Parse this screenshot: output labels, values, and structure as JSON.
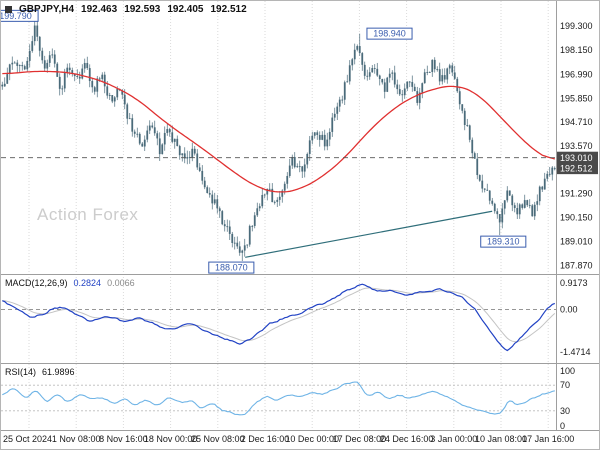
{
  "header": {
    "icon": "chart-symbol-icon",
    "symbol": "GBPJPY,H4",
    "open": "192.463",
    "high": "192.593",
    "low": "192.405",
    "close": "192.512"
  },
  "watermark": "Action Forex",
  "colors": {
    "candle": "#4a6b7a",
    "ma_line": "#e03030",
    "macd_line": "#2142c4",
    "signal_line": "#c4c4c4",
    "rsi_line": "#6fb4e6",
    "annotation": "#3a5dae",
    "price_box_bg": "#4a4a4a",
    "grid": "#dadada",
    "axis_text": "#1a1a1a",
    "trendline": "#2f6e7a",
    "watermark": "#cccccc",
    "separator": "#9e9e9e",
    "level_line": "#555555",
    "zero_line": "#888888",
    "rsi_level": "#bbbbbb"
  },
  "chart_data": [
    {
      "type": "candlestick",
      "title": "GBPJPY H4 price chart",
      "legend_position": "top-left",
      "grid": "vertical-dotted",
      "y_ticks": [
        "199.300",
        "198.150",
        "196.990",
        "195.850",
        "194.710",
        "193.570",
        "191.290",
        "190.150",
        "189.010",
        "187.870"
      ],
      "y_range": [
        187.5,
        200.5
      ],
      "x_labels": [
        "25 Oct 2024",
        "1 Nov 08:00",
        "8 Nov 16:00",
        "18 Nov 00:00",
        "25 Nov 08:00",
        "2 Dec 16:00",
        "10 Dec 00:00",
        "17 Dec 08:00",
        "24 Dec 16:00",
        "3 Jan 00:00",
        "10 Jan 08:00",
        "17 Jan 16:00"
      ],
      "price_anchors": [
        [
          0,
          196.5
        ],
        [
          0.02,
          197.8
        ],
        [
          0.04,
          197.1
        ],
        [
          0.06,
          199.35
        ],
        [
          0.075,
          197.0
        ],
        [
          0.09,
          197.9
        ],
        [
          0.105,
          196.3
        ],
        [
          0.12,
          197.4
        ],
        [
          0.135,
          196.6
        ],
        [
          0.15,
          197.6
        ],
        [
          0.165,
          196.2
        ],
        [
          0.18,
          196.9
        ],
        [
          0.195,
          195.7
        ],
        [
          0.21,
          196.5
        ],
        [
          0.225,
          195.0
        ],
        [
          0.24,
          194.2
        ],
        [
          0.255,
          193.6
        ],
        [
          0.27,
          194.7
        ],
        [
          0.285,
          193.3
        ],
        [
          0.3,
          194.4
        ],
        [
          0.315,
          193.7
        ],
        [
          0.33,
          192.7
        ],
        [
          0.345,
          193.5
        ],
        [
          0.36,
          192.2
        ],
        [
          0.375,
          191.3
        ],
        [
          0.39,
          190.5
        ],
        [
          0.405,
          189.7
        ],
        [
          0.42,
          189.0
        ],
        [
          0.435,
          188.4
        ],
        [
          0.45,
          189.7
        ],
        [
          0.465,
          190.9
        ],
        [
          0.48,
          191.6
        ],
        [
          0.495,
          190.7
        ],
        [
          0.51,
          191.9
        ],
        [
          0.525,
          192.9
        ],
        [
          0.54,
          192.3
        ],
        [
          0.555,
          193.5
        ],
        [
          0.57,
          194.3
        ],
        [
          0.585,
          193.7
        ],
        [
          0.6,
          194.9
        ],
        [
          0.615,
          195.9
        ],
        [
          0.63,
          197.3
        ],
        [
          0.645,
          198.5
        ],
        [
          0.66,
          196.7
        ],
        [
          0.675,
          197.5
        ],
        [
          0.69,
          196.3
        ],
        [
          0.705,
          197.1
        ],
        [
          0.72,
          196.1
        ],
        [
          0.735,
          196.7
        ],
        [
          0.75,
          195.7
        ],
        [
          0.765,
          196.9
        ],
        [
          0.78,
          197.5
        ],
        [
          0.795,
          196.7
        ],
        [
          0.81,
          197.3
        ],
        [
          0.825,
          196.1
        ],
        [
          0.84,
          194.5
        ],
        [
          0.855,
          192.7
        ],
        [
          0.87,
          191.7
        ],
        [
          0.885,
          190.7
        ],
        [
          0.9,
          189.9
        ],
        [
          0.915,
          191.5
        ],
        [
          0.93,
          190.3
        ],
        [
          0.945,
          191.0
        ],
        [
          0.96,
          190.4
        ],
        [
          0.975,
          191.6
        ],
        [
          1,
          192.5
        ]
      ],
      "ma_anchors": [
        [
          0,
          197.0
        ],
        [
          0.06,
          197.15
        ],
        [
          0.12,
          197.1
        ],
        [
          0.18,
          196.7
        ],
        [
          0.24,
          195.9
        ],
        [
          0.3,
          194.6
        ],
        [
          0.36,
          193.5
        ],
        [
          0.42,
          192.3
        ],
        [
          0.46,
          191.6
        ],
        [
          0.5,
          191.3
        ],
        [
          0.54,
          191.5
        ],
        [
          0.58,
          192.1
        ],
        [
          0.62,
          193.0
        ],
        [
          0.66,
          194.2
        ],
        [
          0.7,
          195.2
        ],
        [
          0.74,
          195.9
        ],
        [
          0.78,
          196.3
        ],
        [
          0.82,
          196.5
        ],
        [
          0.86,
          196.1
        ],
        [
          0.9,
          195.0
        ],
        [
          0.94,
          193.9
        ],
        [
          0.97,
          193.2
        ],
        [
          1,
          192.8
        ]
      ],
      "key_points": [
        {
          "kind": "high",
          "t": 0.06,
          "price": 199.79
        },
        {
          "kind": "high",
          "t": 0.645,
          "price": 198.94
        },
        {
          "kind": "low",
          "t": 0.435,
          "price": 188.07
        },
        {
          "kind": "low",
          "t": 0.9,
          "price": 189.31
        }
      ],
      "last_candle": {
        "open": 192.463,
        "high": 192.593,
        "low": 192.405,
        "close": 192.512
      },
      "price_levels": [
        {
          "label": "193.010",
          "price": 193.01,
          "line": "dashed",
          "boxed": true
        },
        {
          "label": "192.512",
          "price": 192.512,
          "line": "none",
          "boxed": true
        }
      ],
      "annotations": [
        {
          "label": "199.790",
          "t": 0.0,
          "price": 199.79,
          "placement": "left-edge"
        },
        {
          "label": "198.940",
          "t": 0.7,
          "price": 198.94,
          "placement": "above"
        },
        {
          "label": "188.070",
          "t": 0.415,
          "price": 188.07,
          "placement": "below"
        },
        {
          "label": "189.310",
          "t": 0.905,
          "price": 189.31,
          "placement": "below"
        }
      ],
      "trendline": {
        "t1": 0.44,
        "p1": 188.25,
        "t2": 0.885,
        "p2": 190.45
      }
    },
    {
      "type": "line",
      "name": "MACD(12,26,9)",
      "values": [
        "0.2824",
        "0.0066"
      ],
      "series_names": [
        "macd-line",
        "signal-line"
      ],
      "y_ticks": [
        {
          "label": "0.9173",
          "value": 0.9173
        },
        {
          "label": "0.00",
          "value": 0
        },
        {
          "label": "-1.4714",
          "value": -1.4714
        }
      ],
      "y_range": [
        -1.78,
        1.12
      ],
      "zero_line": 0,
      "anchors": [
        [
          0,
          0.35
        ],
        [
          0.025,
          0.05
        ],
        [
          0.05,
          -0.3
        ],
        [
          0.08,
          -0.15
        ],
        [
          0.1,
          0.12
        ],
        [
          0.13,
          -0.1
        ],
        [
          0.16,
          -0.4
        ],
        [
          0.19,
          -0.25
        ],
        [
          0.22,
          -0.45
        ],
        [
          0.25,
          -0.28
        ],
        [
          0.28,
          -0.55
        ],
        [
          0.31,
          -0.7
        ],
        [
          0.34,
          -0.5
        ],
        [
          0.37,
          -0.75
        ],
        [
          0.4,
          -1.0
        ],
        [
          0.43,
          -1.2
        ],
        [
          0.455,
          -0.95
        ],
        [
          0.48,
          -0.55
        ],
        [
          0.51,
          -0.3
        ],
        [
          0.54,
          -0.1
        ],
        [
          0.57,
          0.15
        ],
        [
          0.6,
          0.4
        ],
        [
          0.63,
          0.75
        ],
        [
          0.655,
          0.88
        ],
        [
          0.68,
          0.6
        ],
        [
          0.7,
          0.72
        ],
        [
          0.73,
          0.5
        ],
        [
          0.76,
          0.6
        ],
        [
          0.79,
          0.72
        ],
        [
          0.81,
          0.6
        ],
        [
          0.84,
          0.3
        ],
        [
          0.86,
          -0.1
        ],
        [
          0.88,
          -0.7
        ],
        [
          0.9,
          -1.2
        ],
        [
          0.915,
          -1.45
        ],
        [
          0.93,
          -1.15
        ],
        [
          0.95,
          -0.75
        ],
        [
          0.97,
          -0.35
        ],
        [
          1,
          0.28
        ]
      ]
    },
    {
      "type": "line",
      "name": "RSI(14)",
      "values": [
        "61.9896"
      ],
      "y_ticks": [
        {
          "label": "100",
          "value": 100
        },
        {
          "label": "70",
          "value": 70
        },
        {
          "label": "30",
          "value": 30
        },
        {
          "label": "0",
          "value": 0
        }
      ],
      "y_range": [
        0,
        100
      ],
      "levels": [
        70,
        30
      ],
      "anchors": [
        [
          0,
          55
        ],
        [
          0.02,
          68
        ],
        [
          0.04,
          50
        ],
        [
          0.06,
          62
        ],
        [
          0.08,
          44
        ],
        [
          0.1,
          56
        ],
        [
          0.12,
          42
        ],
        [
          0.14,
          58
        ],
        [
          0.16,
          46
        ],
        [
          0.18,
          52
        ],
        [
          0.2,
          40
        ],
        [
          0.22,
          50
        ],
        [
          0.24,
          38
        ],
        [
          0.26,
          48
        ],
        [
          0.28,
          36
        ],
        [
          0.3,
          52
        ],
        [
          0.32,
          42
        ],
        [
          0.34,
          46
        ],
        [
          0.36,
          34
        ],
        [
          0.38,
          40
        ],
        [
          0.4,
          30
        ],
        [
          0.42,
          26
        ],
        [
          0.44,
          24
        ],
        [
          0.46,
          44
        ],
        [
          0.48,
          54
        ],
        [
          0.5,
          46
        ],
        [
          0.52,
          56
        ],
        [
          0.54,
          52
        ],
        [
          0.56,
          60
        ],
        [
          0.58,
          56
        ],
        [
          0.6,
          64
        ],
        [
          0.62,
          70
        ],
        [
          0.64,
          78
        ],
        [
          0.66,
          52
        ],
        [
          0.68,
          60
        ],
        [
          0.7,
          48
        ],
        [
          0.72,
          56
        ],
        [
          0.74,
          48
        ],
        [
          0.76,
          56
        ],
        [
          0.78,
          62
        ],
        [
          0.8,
          54
        ],
        [
          0.82,
          44
        ],
        [
          0.84,
          36
        ],
        [
          0.86,
          30
        ],
        [
          0.88,
          26
        ],
        [
          0.9,
          24
        ],
        [
          0.92,
          50
        ],
        [
          0.93,
          38
        ],
        [
          0.95,
          44
        ],
        [
          0.97,
          52
        ],
        [
          1,
          62
        ]
      ]
    }
  ]
}
